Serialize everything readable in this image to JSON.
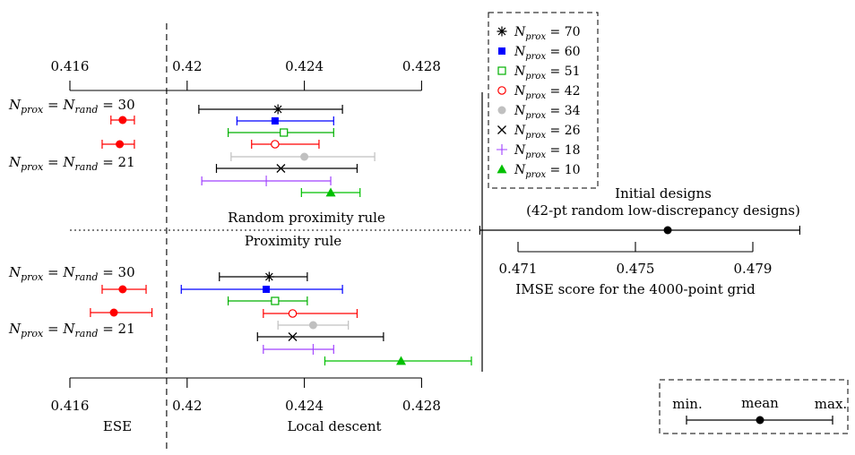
{
  "chart_data": {
    "type": "interval",
    "axes": {
      "main": {
        "tick_labels": [
          "0.416",
          "0.42",
          "0.424",
          "0.428"
        ],
        "range": [
          0.416,
          0.428
        ]
      },
      "initial": {
        "tick_labels": [
          "0.471",
          "0.475",
          "0.479"
        ],
        "range": [
          0.471,
          0.479
        ],
        "label": "IMSE score for the 4000-point grid"
      }
    },
    "reference_line": {
      "x": 0.4193
    },
    "section_labels": {
      "top": "Random proximity rule",
      "bottom": "Proximity rule",
      "ese": "ESE",
      "local": "Local descent"
    },
    "initial_designs": {
      "title": "Initial designs",
      "subtitle": "(42-pt random low-discrepancy designs)",
      "min": 0.4697,
      "mean": 0.4761,
      "max": 0.4806
    },
    "key": {
      "min": "min.",
      "mean": "mean",
      "max": "max."
    },
    "legend": [
      {
        "label": "N_prox = 70",
        "base": "N",
        "sub": "prox",
        "value": "70",
        "marker": "asterisk",
        "color": "#000000"
      },
      {
        "label": "N_prox = 60",
        "base": "N",
        "sub": "prox",
        "value": "60",
        "marker": "filled-square",
        "color": "#0000ff"
      },
      {
        "label": "N_prox = 51",
        "base": "N",
        "sub": "prox",
        "value": "51",
        "marker": "open-square",
        "color": "#00b000"
      },
      {
        "label": "N_prox = 42",
        "base": "N",
        "sub": "prox",
        "value": "42",
        "marker": "open-circle",
        "color": "#ff0000"
      },
      {
        "label": "N_prox = 34",
        "base": "N",
        "sub": "prox",
        "value": "34",
        "marker": "filled-circle",
        "color": "#c0c0c0"
      },
      {
        "label": "N_prox = 26",
        "base": "N",
        "sub": "prox",
        "value": "26",
        "marker": "cross",
        "color": "#000000"
      },
      {
        "label": "N_prox = 18",
        "base": "N",
        "sub": "prox",
        "value": "18",
        "marker": "plus",
        "color": "#a040ff"
      },
      {
        "label": "N_prox = 10",
        "base": "N",
        "sub": "prox",
        "value": "10",
        "marker": "filled-triangle",
        "color": "#00c000"
      }
    ],
    "row_labels": [
      {
        "group": "random",
        "n": "30"
      },
      {
        "group": "random",
        "n": "21"
      },
      {
        "group": "proximity",
        "n": "30"
      },
      {
        "group": "proximity",
        "n": "21"
      }
    ],
    "series": [
      {
        "method": "ESE",
        "rule": "random",
        "n": "30",
        "min": 0.4174,
        "mean": 0.4178,
        "max": 0.4182,
        "marker": "filled-circle",
        "color": "#ff0000"
      },
      {
        "method": "ESE",
        "rule": "random",
        "n": "21",
        "min": 0.4171,
        "mean": 0.4177,
        "max": 0.4182,
        "marker": "filled-circle",
        "color": "#ff0000"
      },
      {
        "method": "Local descent",
        "rule": "random",
        "n_prox": "70",
        "min": 0.4204,
        "mean": 0.4231,
        "max": 0.4253,
        "marker": "asterisk",
        "color": "#000000"
      },
      {
        "method": "Local descent",
        "rule": "random",
        "n_prox": "60",
        "min": 0.4217,
        "mean": 0.423,
        "max": 0.425,
        "marker": "filled-square",
        "color": "#0000ff"
      },
      {
        "method": "Local descent",
        "rule": "random",
        "n_prox": "51",
        "min": 0.4214,
        "mean": 0.4233,
        "max": 0.425,
        "marker": "open-square",
        "color": "#00b000"
      },
      {
        "method": "Local descent",
        "rule": "random",
        "n_prox": "42",
        "min": 0.4222,
        "mean": 0.423,
        "max": 0.4245,
        "marker": "open-circle",
        "color": "#ff0000"
      },
      {
        "method": "Local descent",
        "rule": "random",
        "n_prox": "34",
        "min": 0.4215,
        "mean": 0.424,
        "max": 0.4264,
        "marker": "filled-circle",
        "color": "#c0c0c0"
      },
      {
        "method": "Local descent",
        "rule": "random",
        "n_prox": "26",
        "min": 0.421,
        "mean": 0.4232,
        "max": 0.4258,
        "marker": "cross",
        "color": "#000000"
      },
      {
        "method": "Local descent",
        "rule": "random",
        "n_prox": "18",
        "min": 0.4205,
        "mean": 0.4227,
        "max": 0.4249,
        "marker": "plus",
        "color": "#a040ff"
      },
      {
        "method": "Local descent",
        "rule": "random",
        "n_prox": "10",
        "min": 0.4239,
        "mean": 0.4249,
        "max": 0.4259,
        "marker": "filled-triangle",
        "color": "#00c000"
      },
      {
        "method": "ESE",
        "rule": "proximity",
        "n": "30",
        "min": 0.4171,
        "mean": 0.4178,
        "max": 0.4186,
        "marker": "filled-circle",
        "color": "#ff0000"
      },
      {
        "method": "ESE",
        "rule": "proximity",
        "n": "21",
        "min": 0.4167,
        "mean": 0.4175,
        "max": 0.4188,
        "marker": "filled-circle",
        "color": "#ff0000"
      },
      {
        "method": "Local descent",
        "rule": "proximity",
        "n_prox": "70",
        "min": 0.4211,
        "mean": 0.4228,
        "max": 0.4241,
        "marker": "asterisk",
        "color": "#000000"
      },
      {
        "method": "Local descent",
        "rule": "proximity",
        "n_prox": "60",
        "min": 0.4198,
        "mean": 0.4227,
        "max": 0.4253,
        "marker": "filled-square",
        "color": "#0000ff"
      },
      {
        "method": "Local descent",
        "rule": "proximity",
        "n_prox": "51",
        "min": 0.4214,
        "mean": 0.423,
        "max": 0.4241,
        "marker": "open-square",
        "color": "#00b000"
      },
      {
        "method": "Local descent",
        "rule": "proximity",
        "n_prox": "42",
        "min": 0.4226,
        "mean": 0.4236,
        "max": 0.4258,
        "marker": "open-circle",
        "color": "#ff0000"
      },
      {
        "method": "Local descent",
        "rule": "proximity",
        "n_prox": "34",
        "min": 0.4231,
        "mean": 0.4243,
        "max": 0.4255,
        "marker": "filled-circle",
        "color": "#c0c0c0"
      },
      {
        "method": "Local descent",
        "rule": "proximity",
        "n_prox": "26",
        "min": 0.4224,
        "mean": 0.4236,
        "max": 0.4267,
        "marker": "cross",
        "color": "#000000"
      },
      {
        "method": "Local descent",
        "rule": "proximity",
        "n_prox": "18",
        "min": 0.4226,
        "mean": 0.4243,
        "max": 0.425,
        "marker": "plus",
        "color": "#a040ff"
      },
      {
        "method": "Local descent",
        "rule": "proximity",
        "n_prox": "10",
        "min": 0.4247,
        "mean": 0.4273,
        "max": 0.4297,
        "marker": "filled-triangle",
        "color": "#00c000"
      }
    ]
  }
}
